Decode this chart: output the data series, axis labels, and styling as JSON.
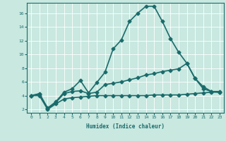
{
  "xlabel": "Humidex (Indice chaleur)",
  "xlim": [
    -0.5,
    23.5
  ],
  "ylim": [
    1.5,
    17.5
  ],
  "yticks": [
    2,
    4,
    6,
    8,
    10,
    12,
    14,
    16
  ],
  "xticks": [
    0,
    1,
    2,
    3,
    4,
    5,
    6,
    7,
    8,
    9,
    10,
    11,
    12,
    13,
    14,
    15,
    16,
    17,
    18,
    19,
    20,
    21,
    22,
    23
  ],
  "bg_color": "#c8e8e0",
  "line_color": "#1a6b6b",
  "series": [
    {
      "x": [
        0,
        1,
        2,
        3,
        4,
        5,
        6,
        7,
        8,
        9,
        10,
        11,
        12,
        13,
        14,
        15,
        16,
        17,
        18,
        19,
        20,
        21,
        22,
        23
      ],
      "y": [
        4.0,
        4.3,
        2.2,
        3.1,
        4.5,
        5.0,
        6.2,
        4.4,
        5.9,
        7.4,
        10.8,
        12.1,
        14.8,
        16.0,
        17.0,
        17.0,
        14.8,
        12.3,
        10.3,
        8.7,
        6.5,
        5.3,
        4.6,
        4.6
      ],
      "marker": "D",
      "markersize": 2.5,
      "linewidth": 1.2
    },
    {
      "x": [
        0,
        1,
        2,
        3,
        4,
        5,
        6,
        7,
        8,
        9,
        10,
        11,
        12,
        13,
        14,
        15,
        16,
        17,
        18,
        19,
        20,
        21,
        22,
        23
      ],
      "y": [
        4.0,
        4.2,
        2.1,
        3.0,
        4.3,
        4.6,
        4.7,
        4.3,
        4.5,
        5.6,
        5.8,
        6.0,
        6.3,
        6.6,
        7.0,
        7.2,
        7.5,
        7.7,
        7.9,
        8.7,
        6.5,
        5.0,
        4.6,
        4.5
      ],
      "marker": "D",
      "markersize": 2.5,
      "linewidth": 1.2
    },
    {
      "x": [
        0,
        1,
        2,
        3,
        4,
        5,
        6,
        7,
        8,
        9,
        10,
        11,
        12,
        13,
        14,
        15,
        16,
        17,
        18,
        19,
        20,
        21,
        22,
        23
      ],
      "y": [
        4.0,
        4.0,
        2.0,
        2.8,
        3.5,
        3.7,
        3.8,
        3.9,
        4.0,
        4.0,
        4.0,
        4.0,
        4.0,
        4.0,
        4.0,
        4.1,
        4.1,
        4.1,
        4.1,
        4.2,
        4.3,
        4.4,
        4.5,
        4.5
      ],
      "marker": "D",
      "markersize": 2.5,
      "linewidth": 1.2
    }
  ]
}
